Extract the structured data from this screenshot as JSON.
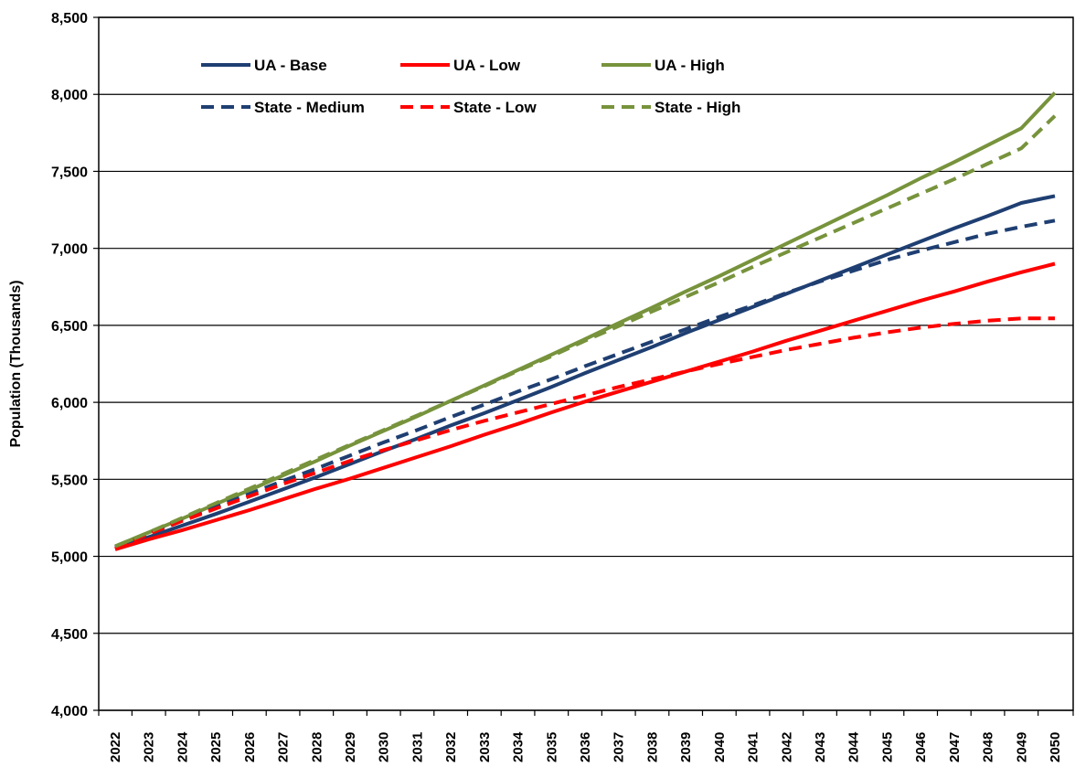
{
  "chart_data": {
    "type": "line",
    "title": "",
    "xlabel": "",
    "ylabel": "Population  (Thousands)",
    "ylim": [
      4000,
      8500
    ],
    "yticks": [
      4000,
      4500,
      5000,
      5500,
      6000,
      6500,
      7000,
      7500,
      8000,
      8500
    ],
    "ytick_labels": [
      "4,000",
      "4,500",
      "5,000",
      "5,500",
      "6,000",
      "6,500",
      "7,000",
      "7,500",
      "8,000",
      "8,500"
    ],
    "grid": "horizontal",
    "legend_position": "top-left",
    "x": [
      "2022",
      "2023",
      "2024",
      "2025",
      "2026",
      "2027",
      "2028",
      "2029",
      "2030",
      "2031",
      "2032",
      "2033",
      "2034",
      "2035",
      "2036",
      "2037",
      "2038",
      "2039",
      "2040",
      "2041",
      "2042",
      "2043",
      "2044",
      "2045",
      "2046",
      "2047",
      "2048",
      "2049",
      "2050"
    ],
    "series": [
      {
        "name": "UA - Base",
        "color": "#1F3F72",
        "style": "solid",
        "values": [
          5050,
          5125,
          5200,
          5275,
          5355,
          5435,
          5515,
          5600,
          5685,
          5765,
          5850,
          5930,
          6015,
          6100,
          6190,
          6275,
          6360,
          6450,
          6535,
          6620,
          6705,
          6790,
          6875,
          6960,
          7045,
          7130,
          7210,
          7295,
          7340
        ]
      },
      {
        "name": "UA - Low",
        "color": "#FF0000",
        "style": "solid",
        "values": [
          5045,
          5110,
          5170,
          5235,
          5300,
          5370,
          5440,
          5505,
          5575,
          5645,
          5715,
          5790,
          5860,
          5935,
          6005,
          6070,
          6135,
          6200,
          6265,
          6330,
          6400,
          6465,
          6530,
          6595,
          6660,
          6720,
          6785,
          6845,
          6900
        ]
      },
      {
        "name": "UA - High",
        "color": "#77933C",
        "style": "solid",
        "values": [
          5065,
          5155,
          5245,
          5340,
          5430,
          5525,
          5620,
          5720,
          5815,
          5910,
          6010,
          6110,
          6210,
          6310,
          6410,
          6515,
          6615,
          6720,
          6820,
          6925,
          7030,
          7135,
          7240,
          7345,
          7455,
          7560,
          7670,
          7780,
          8010
        ]
      },
      {
        "name": "State - Medium",
        "color": "#1F3F72",
        "style": "dashed",
        "values": [
          5060,
          5150,
          5240,
          5320,
          5405,
          5490,
          5570,
          5655,
          5740,
          5820,
          5905,
          5985,
          6070,
          6150,
          6235,
          6315,
          6395,
          6475,
          6555,
          6630,
          6710,
          6785,
          6855,
          6925,
          6985,
          7040,
          7095,
          7140,
          7180
        ]
      },
      {
        "name": "State - Low",
        "color": "#FF0000",
        "style": "dashed",
        "values": [
          5050,
          5145,
          5230,
          5310,
          5390,
          5470,
          5545,
          5620,
          5690,
          5755,
          5820,
          5880,
          5935,
          5990,
          6045,
          6100,
          6150,
          6200,
          6250,
          6295,
          6340,
          6380,
          6420,
          6455,
          6485,
          6510,
          6530,
          6545,
          6545
        ]
      },
      {
        "name": "State - High",
        "color": "#77933C",
        "style": "dashed",
        "values": [
          5065,
          5155,
          5250,
          5345,
          5440,
          5535,
          5630,
          5725,
          5820,
          5915,
          6010,
          6105,
          6205,
          6300,
          6400,
          6495,
          6590,
          6685,
          6780,
          6880,
          6975,
          7070,
          7165,
          7260,
          7355,
          7450,
          7550,
          7650,
          7860
        ]
      }
    ]
  }
}
